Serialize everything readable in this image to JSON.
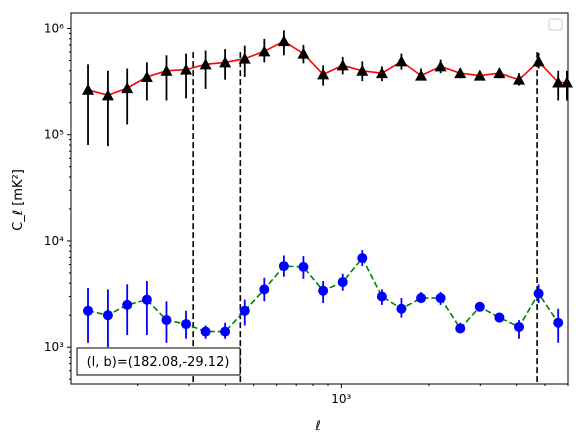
{
  "chart_data": {
    "type": "scatter",
    "xlabel": "ℓ",
    "ylabel": "C_ℓ  [mK²]",
    "xscale": "log",
    "yscale": "log",
    "xlim": [
      118,
      6000
    ],
    "ylim": [
      450,
      1400000
    ],
    "x_tick_labels": [
      {
        "value": 1000,
        "label": "10³"
      }
    ],
    "y_tick_labels": [
      {
        "value": 1000,
        "label": "10³"
      },
      {
        "value": 10000,
        "label": "10⁴"
      },
      {
        "value": 100000,
        "label": "10⁵"
      },
      {
        "value": 1000000,
        "label": "10⁶"
      }
    ],
    "vlines": [
      310,
      450,
      4700
    ],
    "annotation": "(l, b)=(182.08,-29.12)",
    "legend": {
      "placement": "top-right",
      "entries": []
    },
    "series": [
      {
        "marker": "triangle",
        "line_style": "solid",
        "line_color": "#ff0000",
        "marker_color": "#000000",
        "x": [
          135,
          158,
          184,
          215,
          251,
          293,
          342,
          399,
          466,
          544,
          635,
          741,
          866,
          1011,
          1180,
          1378,
          1608,
          1878,
          2192,
          2560,
          2988,
          3489,
          4073,
          4756,
          5553,
          5950
        ],
        "y": [
          265000,
          235000,
          275000,
          350000,
          400000,
          410000,
          460000,
          480000,
          520000,
          610000,
          760000,
          580000,
          370000,
          450000,
          400000,
          380000,
          490000,
          360000,
          440000,
          380000,
          360000,
          380000,
          330000,
          490000,
          310000,
          310000
        ],
        "y_low": [
          80000,
          78000,
          125000,
          210000,
          210000,
          220000,
          270000,
          330000,
          350000,
          480000,
          560000,
          470000,
          290000,
          370000,
          320000,
          320000,
          410000,
          330000,
          380000,
          340000,
          330000,
          340000,
          290000,
          420000,
          210000,
          210000
        ],
        "y_high": [
          460000,
          400000,
          420000,
          480000,
          560000,
          580000,
          620000,
          640000,
          690000,
          800000,
          960000,
          700000,
          450000,
          540000,
          490000,
          440000,
          580000,
          420000,
          510000,
          420000,
          400000,
          420000,
          380000,
          590000,
          400000,
          400000
        ]
      },
      {
        "marker": "circle",
        "line_style": "dashed",
        "line_color": "#008000",
        "marker_color": "#0000ff",
        "x": [
          135,
          158,
          184,
          215,
          251,
          293,
          342,
          399,
          466,
          544,
          635,
          741,
          866,
          1011,
          1180,
          1378,
          1608,
          1878,
          2192,
          2560,
          2988,
          3489,
          4073,
          4756,
          5553
        ],
        "y": [
          2200,
          2000,
          2500,
          2800,
          1800,
          1650,
          1400,
          1400,
          2200,
          3500,
          5800,
          5700,
          3400,
          4100,
          6900,
          3000,
          2300,
          2900,
          2900,
          1500,
          2400,
          1900,
          1550,
          3200,
          1700
        ],
        "y_low": [
          1100,
          1000,
          1300,
          1300,
          1100,
          1200,
          1200,
          1200,
          1600,
          2700,
          4600,
          4400,
          2600,
          3400,
          5800,
          2500,
          1900,
          2600,
          2500,
          1400,
          2200,
          1700,
          1200,
          2600,
          1100
        ],
        "y_high": [
          3600,
          3500,
          3900,
          4200,
          2700,
          2200,
          1600,
          1700,
          2800,
          4500,
          7300,
          7200,
          4200,
          4900,
          8200,
          3500,
          2900,
          3300,
          3300,
          1700,
          2600,
          2100,
          1800,
          3900,
          2300
        ]
      }
    ]
  }
}
